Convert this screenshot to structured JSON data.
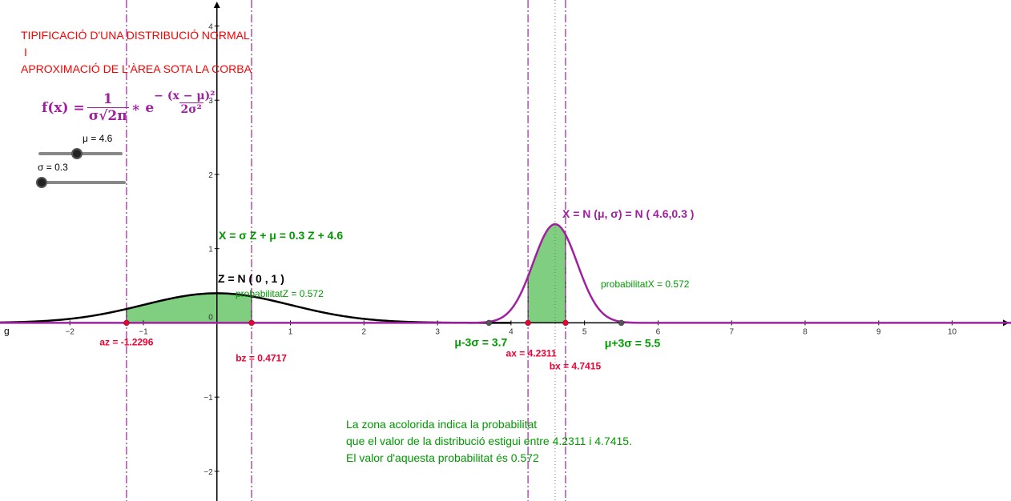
{
  "header": {
    "title_line1": "TIPIFICACIÓ D'UNA DISTRIBUCIÓ NORMAL",
    "title_line2": "I",
    "title_line3": "APROXIMACIÓ DE L'ÀREA SOTA LA CORBA"
  },
  "formula": {
    "lhs": "f(x) =",
    "num": "1",
    "den": "σ√2π",
    "times_e": "∗ e",
    "exp_sign": "−",
    "exp_num": "(x − μ)²",
    "exp_den": "2σ²"
  },
  "sliders": {
    "mu": {
      "label": "μ = 4.6",
      "value": 4.6,
      "min": 0,
      "max": 10
    },
    "sigma": {
      "label": "σ = 0.3",
      "value": 0.3,
      "min": 0.3,
      "max": 5
    }
  },
  "notes": {
    "line1": "La zona acolorida indica la probabilitat",
    "line2": "que el valor de la distribució estigui entre 4.2311 i 4.7415.",
    "line3": "El valor d'aquesta probabilitat és 0.572"
  },
  "colors": {
    "x_curve": "#a020a0",
    "z_curve": "#000000",
    "fill": "#3cb43c",
    "red": "#ee0033",
    "green_text": "#009900",
    "title": "#ff0000",
    "axis": "#000000"
  },
  "chart_data": {
    "type": "area",
    "x_ticks": [
      -2,
      -1,
      0,
      1,
      2,
      3,
      4,
      5,
      6,
      7,
      8,
      9,
      10
    ],
    "y_ticks": [
      -2,
      -1,
      0,
      1,
      2,
      3,
      4
    ],
    "xlim": [
      -2.95,
      10.8
    ],
    "ylim": [
      -2.4,
      4.35
    ],
    "x_axis_name": "g",
    "series": [
      {
        "name": "Z = N ( 0 , 1 )",
        "mu": 0,
        "sigma": 1,
        "shade_from": -1.2296,
        "shade_to": 0.4717,
        "prob_label": "probabilitatZ = 0.572"
      },
      {
        "name": "X = N (μ, σ) = N ( 4.6,0.3 )",
        "mu": 4.6,
        "sigma": 0.3,
        "shade_from": 4.2311,
        "shade_to": 4.7415,
        "prob_label": "probabilitatX = 0.572"
      }
    ],
    "transform_label": "X = σ Z + μ = 0.3 Z + 4.6",
    "markers": [
      {
        "label": "az = -1.2296",
        "x": -1.2296,
        "color": "red",
        "line": true
      },
      {
        "label": "bz = 0.4717",
        "x": 0.4717,
        "color": "red",
        "line": true
      },
      {
        "label": "ax = 4.2311",
        "x": 4.2311,
        "color": "red",
        "line": true
      },
      {
        "label": "bx = 4.7415",
        "x": 4.7415,
        "color": "red",
        "line": true
      },
      {
        "label": "μ-3σ = 3.7",
        "x": 3.7,
        "color": "green_text",
        "line": false
      },
      {
        "label": "μ+3σ = 5.5",
        "x": 5.5,
        "color": "green_text",
        "line": false
      }
    ],
    "mu_line": 4.6
  }
}
